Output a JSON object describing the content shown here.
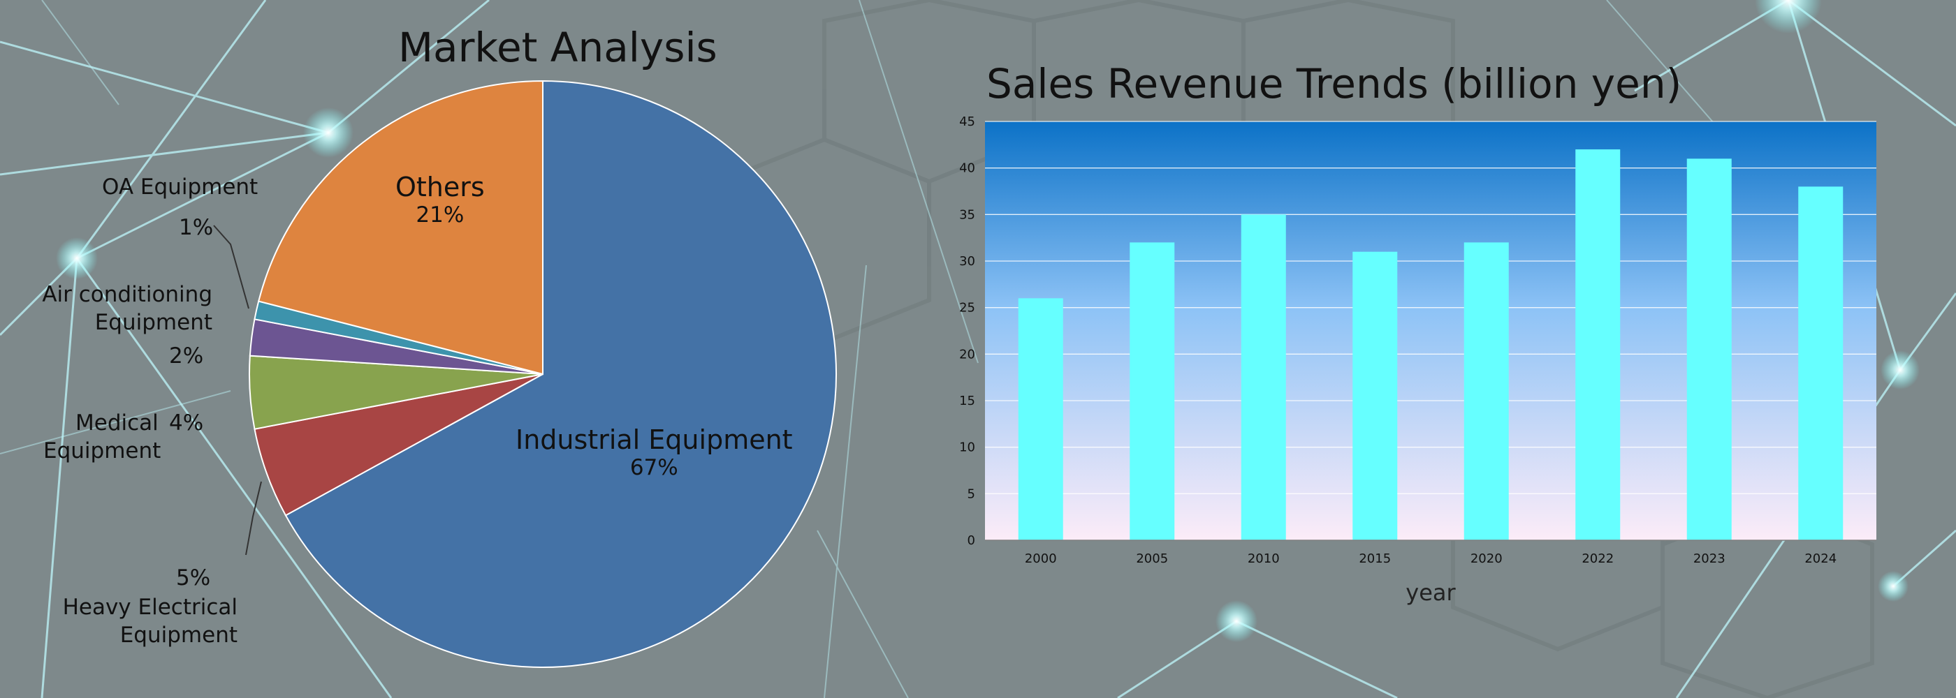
{
  "pie": {
    "title": "Market Analysis",
    "labels": {
      "industrial": "Industrial Equipment",
      "industrial_pct": "67%",
      "others": "Others",
      "others_pct": "21%",
      "oa": "OA Equipment",
      "oa_pct": "1%",
      "air_l1": "Air conditioning",
      "air_l2": "Equipment",
      "air_pct": "2%",
      "medical_l1": "Medical",
      "medical_l2": "Equipment",
      "medical_pct": "4%",
      "heavy_pct": "5%",
      "heavy_l1": "Heavy Electrical",
      "heavy_l2": "Equipment"
    }
  },
  "bar": {
    "title": "Sales Revenue Trends (billion yen)"
  },
  "chart_data": [
    {
      "type": "pie",
      "title": "Market Analysis",
      "categories": [
        "Industrial Equipment",
        "Heavy Electrical Equipment",
        "Medical Equipment",
        "Air conditioning Equipment",
        "OA Equipment",
        "Others"
      ],
      "values": [
        67,
        5,
        4,
        2,
        1,
        21
      ],
      "colors": [
        "#4472a6",
        "#a84544",
        "#88a34e",
        "#6c5592",
        "#3d93ac",
        "#de843f"
      ]
    },
    {
      "type": "bar",
      "title": "Sales Revenue Trends (billion yen)",
      "categories": [
        "2000",
        "2005",
        "2010",
        "2015",
        "2020",
        "2022",
        "2023",
        "2024"
      ],
      "values": [
        26,
        32,
        35,
        31,
        32,
        42,
        41,
        38
      ],
      "xlabel": "year",
      "ylabel": "",
      "ylim": [
        0,
        45
      ],
      "yticks": [
        0,
        5,
        10,
        15,
        20,
        25,
        30,
        35,
        40,
        45
      ],
      "grid": true,
      "bar_color": "#66ffff"
    }
  ]
}
